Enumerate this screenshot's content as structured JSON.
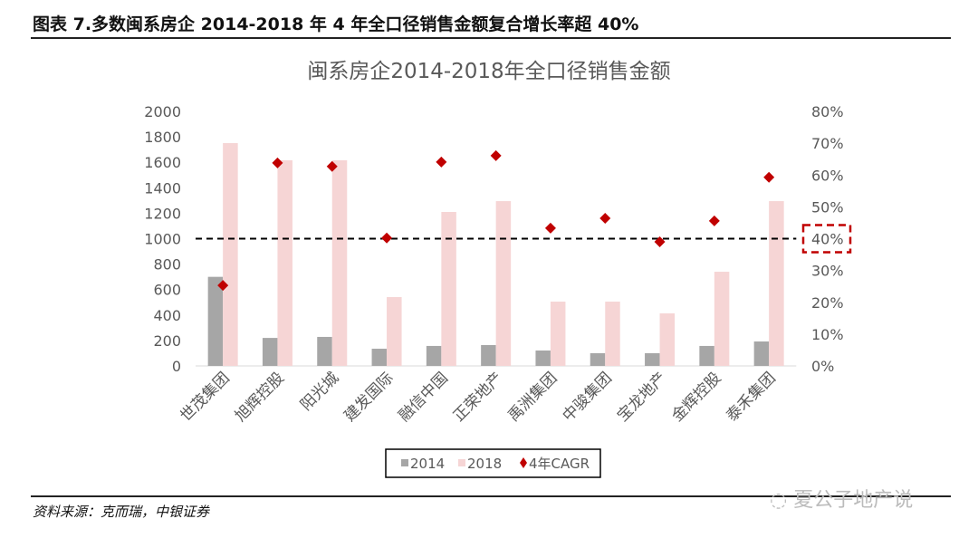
{
  "heading": "图表 7.多数闽系房企 2014-2018 年 4 年全口径销售金额复合增长率超 40%",
  "source": "资料来源：克而瑞，中银证券",
  "watermark": "夏公子地产说",
  "chart_data": {
    "type": "bar",
    "title": "闽系房企2014-2018年全口径销售金额",
    "categories": [
      "世茂集团",
      "旭辉控股",
      "阳光城",
      "建发国际",
      "融信中国",
      "正荣地产",
      "禹洲集团",
      "中骏集团",
      "宝龙地产",
      "金辉控股",
      "泰禾集团"
    ],
    "series": [
      {
        "name": "2014",
        "type": "bar",
        "axis": "left",
        "color": "#a6a6a6",
        "values": [
          700,
          220,
          228,
          135,
          157,
          164,
          121,
          100,
          100,
          157,
          192
        ]
      },
      {
        "name": "2018",
        "type": "bar",
        "axis": "left",
        "color": "#f6d5d5",
        "values": [
          1751,
          1616,
          1616,
          541,
          1210,
          1295,
          505,
          505,
          413,
          740,
          1295
        ]
      },
      {
        "name": "4年CAGR",
        "type": "scatter",
        "axis": "right",
        "marker": "diamond",
        "color": "#c00000",
        "values": [
          25.3,
          63.8,
          62.7,
          40.2,
          64.1,
          66.1,
          43.3,
          46.4,
          39.0,
          45.6,
          59.3
        ]
      }
    ],
    "ylim": [
      0,
      2000
    ],
    "yticks": [
      "0",
      "200",
      "400",
      "600",
      "800",
      "1000",
      "1200",
      "1400",
      "1600",
      "1800",
      "2000"
    ],
    "y2lim": [
      0,
      80
    ],
    "y2ticks": [
      "0%",
      "10%",
      "20%",
      "30%",
      "40%",
      "50%",
      "60%",
      "70%",
      "80%"
    ],
    "reference_line": {
      "axis": "right",
      "value": 40,
      "style": "dashed",
      "color": "#000000"
    },
    "highlight_tick": {
      "label": "40%",
      "color": "#c00000"
    },
    "legend": "bottom",
    "grid": false
  }
}
